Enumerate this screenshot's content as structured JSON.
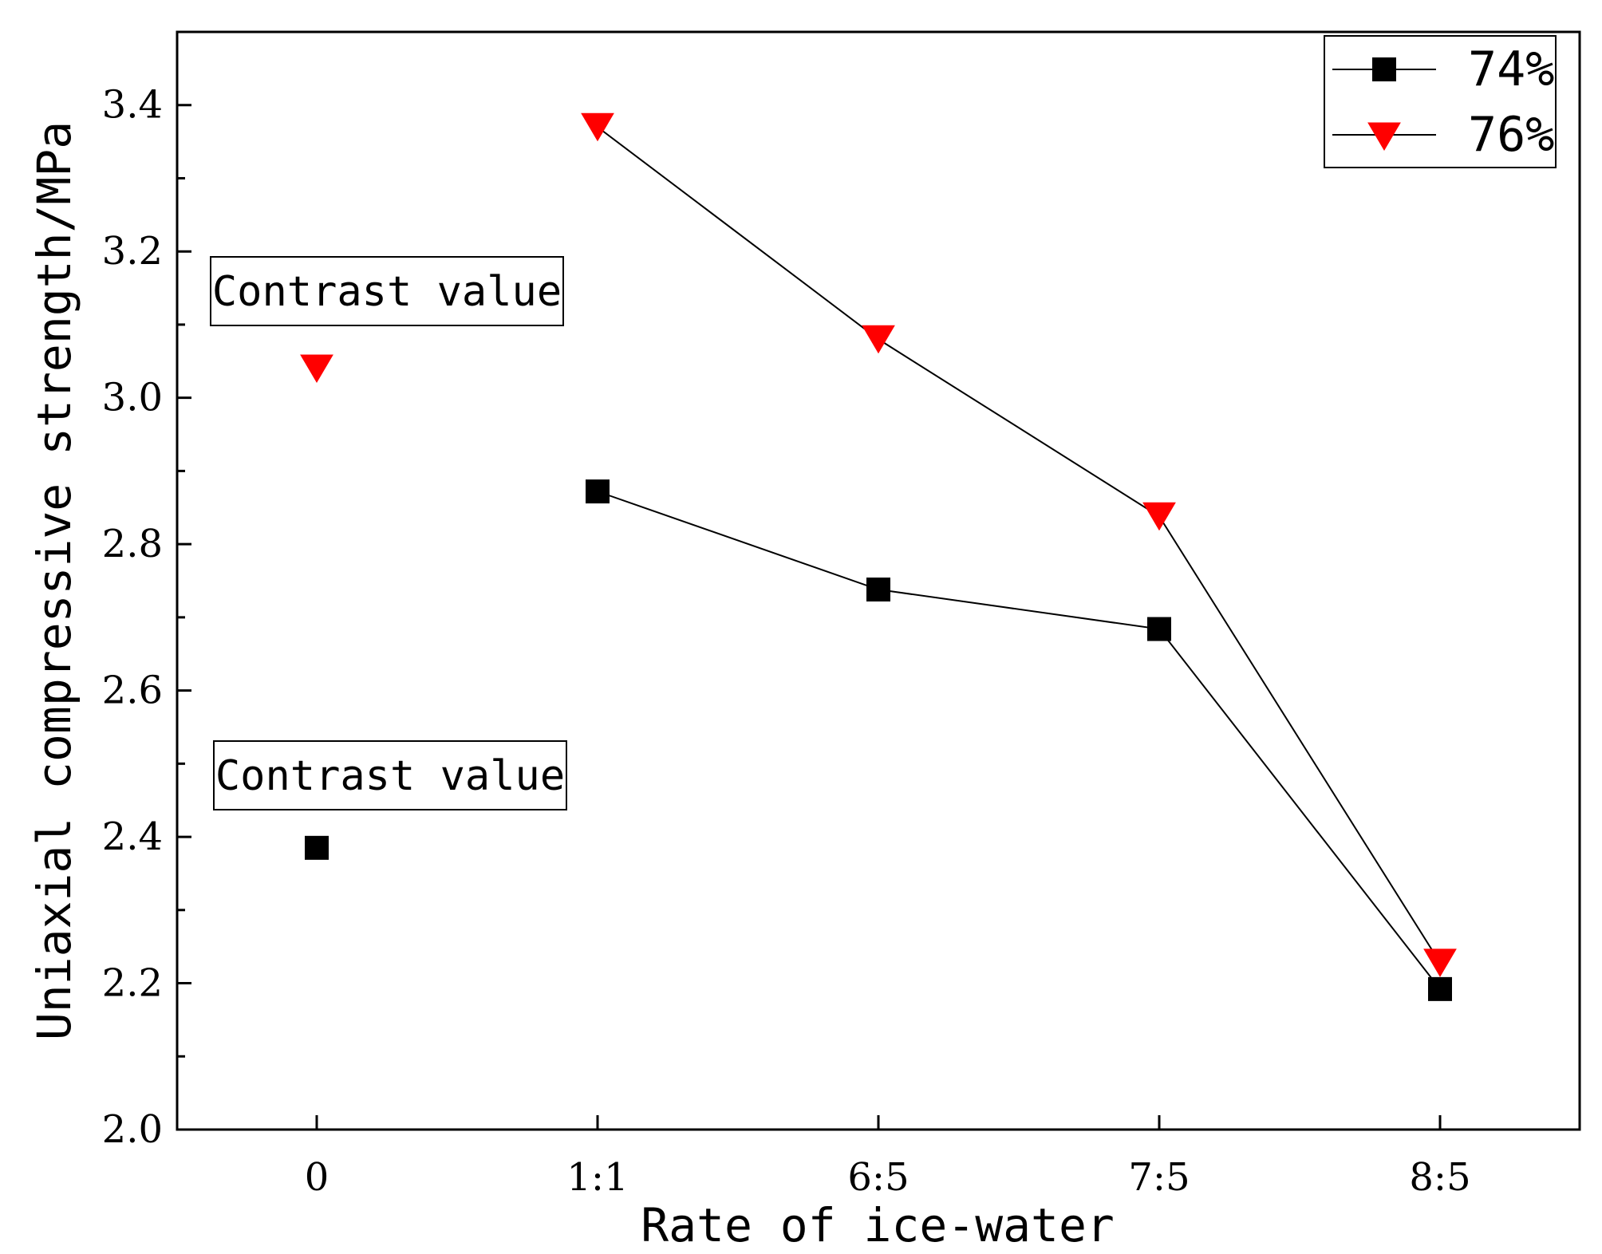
{
  "chart_data": {
    "type": "line",
    "title": "",
    "xlabel": "Rate of ice-water",
    "ylabel": "Uniaxial compressive strength/MPa",
    "categories": [
      "0",
      "1:1",
      "6:5",
      "7:5",
      "8:5"
    ],
    "ylim": [
      2.0,
      3.5
    ],
    "yticks": [
      2.0,
      2.2,
      2.4,
      2.6,
      2.8,
      3.0,
      3.2,
      3.4
    ],
    "ytick_labels": [
      "2.0",
      "2.2",
      "2.4",
      "2.6",
      "2.8",
      "3.0",
      "3.2",
      "3.4"
    ],
    "grid": false,
    "legend_position": "top-right",
    "series": [
      {
        "name": "74%",
        "marker": "square",
        "color": "#000000",
        "values": [
          2.385,
          2.872,
          2.738,
          2.684,
          2.192
        ],
        "connected_from_index": 1
      },
      {
        "name": "76%",
        "marker": "triangle-down",
        "color": "#ff0000",
        "values": [
          3.04,
          3.37,
          3.08,
          2.838,
          2.228
        ],
        "connected_from_index": 1
      }
    ],
    "annotations": [
      {
        "text": "Contrast value",
        "series": "76%",
        "category": "0"
      },
      {
        "text": "Contrast value",
        "series": "74%",
        "category": "0"
      }
    ]
  }
}
